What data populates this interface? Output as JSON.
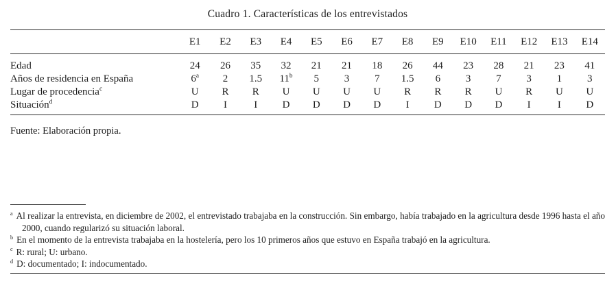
{
  "page": {
    "title": "Cuadro 1. Características de los entrevistados",
    "source": "Fuente: Elaboración propia."
  },
  "table": {
    "columns": [
      "E1",
      "E2",
      "E3",
      "E4",
      "E5",
      "E6",
      "E7",
      "E8",
      "E9",
      "E10",
      "E11",
      "E12",
      "E13",
      "E14"
    ],
    "rows": [
      {
        "label": "Edad",
        "values": [
          "24",
          "26",
          "35",
          "32",
          "21",
          "21",
          "18",
          "26",
          "44",
          "23",
          "28",
          "21",
          "23",
          "41"
        ]
      },
      {
        "label": "Años de residencia en España",
        "values": [
          "6^a",
          "2",
          "1.5",
          "11^b",
          "5",
          "3",
          "7",
          "1.5",
          "6",
          "3",
          "7",
          "3",
          "1",
          "3"
        ]
      },
      {
        "label": "Lugar de procedencia^c",
        "values": [
          "U",
          "R",
          "R",
          "U",
          "U",
          "U",
          "U",
          "R",
          "R",
          "R",
          "U",
          "R",
          "U",
          "U"
        ]
      },
      {
        "label": "Situación^d",
        "values": [
          "D",
          "I",
          "I",
          "D",
          "D",
          "D",
          "D",
          "I",
          "D",
          "D",
          "D",
          "I",
          "I",
          "D"
        ]
      }
    ]
  },
  "footnotes": [
    {
      "marker": "a",
      "text": "Al realizar la entrevista, en diciembre de 2002, el entrevistado trabajaba en la construcción. Sin embargo, había trabajado en la agricultura desde 1996 hasta el año 2000, cuando regularizó su situación laboral."
    },
    {
      "marker": "b",
      "text": "En el momento de la entrevista trabajaba en la hostelería, pero los 10 primeros años que estuvo en España trabajó en la agricultura."
    },
    {
      "marker": "c",
      "text": "R: rural; U: urbano."
    },
    {
      "marker": "d",
      "text": "D: documentado; I: indocumentado."
    }
  ]
}
